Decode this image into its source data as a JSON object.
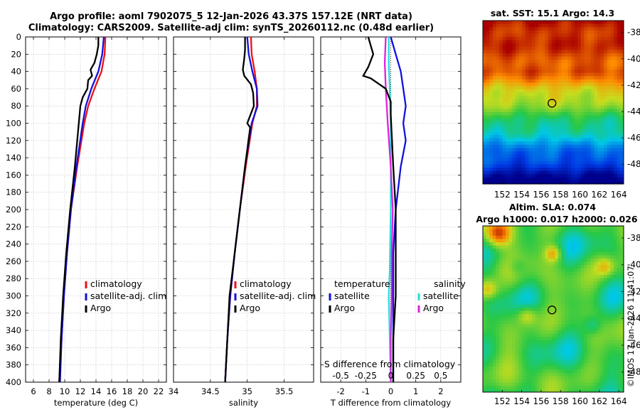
{
  "header": {
    "title_line1": "Argo profile: aoml 7902075_5 12-Jan-2026 43.37S 157.12E (NRT data)",
    "title_line2": "Climatology: CARS2009. Satellite-adj clim: synTS_20260112.nc (0.48d earlier)"
  },
  "maps": {
    "sst_title": "sat. SST: 15.1 Argo: 14.3",
    "sla_title_line1": "Altim. SLA: 0.074",
    "sla_title_line2": "Argo h1000: 0.017 h2000: 0.026",
    "lon_ticks": [
      "152",
      "154",
      "156",
      "158",
      "160",
      "162",
      "164"
    ],
    "lat_ticks": [
      "-38",
      "-40",
      "-42",
      "-44",
      "-46",
      "-48"
    ]
  },
  "credit": "©IMOS 17-Jan-2026 11:41:07",
  "colors": {
    "climatology": "#ee1111",
    "satellite": "#1111dd",
    "argo": "#000000",
    "salinity_sat": "#22dddd",
    "salinity_argo": "#dd22dd"
  },
  "chart_data": [
    {
      "type": "line",
      "name": "temperature",
      "xlabel": "temperature (deg C)",
      "ylabel": "",
      "xlim": [
        5,
        23
      ],
      "ylim": [
        400,
        0
      ],
      "xticks": [
        "6",
        "8",
        "10",
        "12",
        "14",
        "16",
        "18",
        "20",
        "22"
      ],
      "yticks": [
        "0",
        "20",
        "40",
        "60",
        "80",
        "100",
        "120",
        "140",
        "160",
        "180",
        "200",
        "220",
        "240",
        "260",
        "280",
        "300",
        "320",
        "340",
        "360",
        "380",
        "400"
      ],
      "legend": [
        "climatology",
        "satellite-adj. clim",
        "Argo"
      ],
      "grid": true,
      "depth": [
        0,
        20,
        40,
        60,
        80,
        100,
        150,
        200,
        250,
        300,
        350,
        400
      ],
      "series": [
        {
          "name": "climatology",
          "values": [
            15.2,
            15.1,
            14.7,
            13.8,
            13.0,
            12.5,
            11.6,
            10.8,
            10.3,
            9.9,
            9.6,
            9.3
          ]
        },
        {
          "name": "satellite-adj. clim",
          "values": [
            15.0,
            14.8,
            14.3,
            13.4,
            12.7,
            12.3,
            11.5,
            10.8,
            10.3,
            9.9,
            9.6,
            9.4
          ]
        },
        {
          "name": "Argo",
          "profile": [
            [
              0,
              14.3
            ],
            [
              10,
              14.3
            ],
            [
              20,
              14.1
            ],
            [
              30,
              13.8
            ],
            [
              38,
              13.3
            ],
            [
              45,
              13.5
            ],
            [
              50,
              13.0
            ],
            [
              60,
              12.9
            ],
            [
              70,
              12.3
            ],
            [
              80,
              12.0
            ],
            [
              100,
              11.8
            ],
            [
              150,
              11.3
            ],
            [
              200,
              10.7
            ],
            [
              250,
              10.2
            ],
            [
              300,
              9.8
            ],
            [
              350,
              9.5
            ],
            [
              400,
              9.3
            ]
          ]
        }
      ]
    },
    {
      "type": "line",
      "name": "salinity",
      "xlabel": "salinity",
      "ylabel": "",
      "xlim": [
        34,
        35.9
      ],
      "ylim": [
        400,
        0
      ],
      "xticks": [
        "34",
        "34.5",
        "35",
        "35.5"
      ],
      "legend": [
        "climatology",
        "satellite-adj. clim",
        "Argo"
      ],
      "grid": true,
      "depth": [
        0,
        20,
        40,
        60,
        80,
        100,
        150,
        200,
        250,
        300,
        350,
        400
      ],
      "series": [
        {
          "name": "climatology",
          "values": [
            35.05,
            35.06,
            35.1,
            35.13,
            35.13,
            35.07,
            34.98,
            34.9,
            34.83,
            34.77,
            34.73,
            34.7
          ]
        },
        {
          "name": "satellite-adj. clim",
          "values": [
            35.0,
            35.02,
            35.07,
            35.13,
            35.14,
            35.06,
            34.97,
            34.9,
            34.83,
            34.77,
            34.73,
            34.7
          ]
        },
        {
          "name": "Argo",
          "profile": [
            [
              0,
              34.97
            ],
            [
              15,
              34.97
            ],
            [
              25,
              34.96
            ],
            [
              38,
              34.94
            ],
            [
              45,
              34.96
            ],
            [
              55,
              35.05
            ],
            [
              65,
              35.08
            ],
            [
              80,
              35.09
            ],
            [
              100,
              35.0
            ],
            [
              105,
              35.04
            ],
            [
              150,
              34.97
            ],
            [
              200,
              34.9
            ],
            [
              250,
              34.83
            ],
            [
              300,
              34.76
            ],
            [
              350,
              34.73
            ],
            [
              400,
              34.7
            ]
          ]
        }
      ]
    },
    {
      "type": "line",
      "name": "difference from climatology",
      "xlabel": "T difference from climatology",
      "xlabel_top": "S difference from climatology",
      "xlim": [
        -2.8,
        2.8
      ],
      "ylim": [
        400,
        0
      ],
      "xticks": [
        "-2",
        "-1",
        "0",
        "1",
        "2"
      ],
      "xticks_top": [
        "-0.5",
        "-0.25",
        "0",
        "0.25",
        "0.5"
      ],
      "legend_temperature_title": "temperature",
      "legend_salinity_title": "salinity",
      "legend_temperature": [
        "satellite",
        "Argo"
      ],
      "legend_salinity": [
        "satellite",
        "Argo"
      ],
      "grid": true,
      "series": [
        {
          "name": "temperature satellite",
          "profile": [
            [
              0,
              0.0
            ],
            [
              20,
              0.2
            ],
            [
              40,
              0.4
            ],
            [
              60,
              0.5
            ],
            [
              80,
              0.6
            ],
            [
              100,
              0.5
            ],
            [
              120,
              0.6
            ],
            [
              150,
              0.4
            ],
            [
              200,
              0.2
            ],
            [
              250,
              0.1
            ],
            [
              300,
              0.1
            ],
            [
              350,
              0.1
            ],
            [
              400,
              0.1
            ]
          ]
        },
        {
          "name": "temperature Argo",
          "profile": [
            [
              0,
              -0.9
            ],
            [
              20,
              -0.7
            ],
            [
              35,
              -0.9
            ],
            [
              45,
              -1.1
            ],
            [
              48,
              -0.8
            ],
            [
              60,
              -0.2
            ],
            [
              75,
              0.0
            ],
            [
              90,
              0.0
            ],
            [
              150,
              0.1
            ],
            [
              200,
              0.2
            ],
            [
              250,
              0.2
            ],
            [
              300,
              0.2
            ],
            [
              350,
              0.1
            ],
            [
              400,
              0.1
            ]
          ]
        },
        {
          "name": "salinity satellite",
          "profile": [
            [
              0,
              -0.02
            ],
            [
              30,
              -0.02
            ],
            [
              60,
              -0.01
            ],
            [
              100,
              0.0
            ],
            [
              200,
              0.0
            ],
            [
              270,
              -0.01
            ],
            [
              300,
              -0.02
            ],
            [
              350,
              -0.01
            ],
            [
              400,
              0.0
            ]
          ]
        },
        {
          "name": "salinity Argo",
          "profile": [
            [
              0,
              -0.05
            ],
            [
              30,
              -0.06
            ],
            [
              60,
              -0.05
            ],
            [
              80,
              -0.04
            ],
            [
              100,
              -0.03
            ],
            [
              150,
              0.0
            ],
            [
              200,
              0.02
            ],
            [
              250,
              0.01
            ],
            [
              300,
              0.01
            ],
            [
              350,
              0.0
            ],
            [
              400,
              0.0
            ]
          ]
        }
      ]
    }
  ]
}
